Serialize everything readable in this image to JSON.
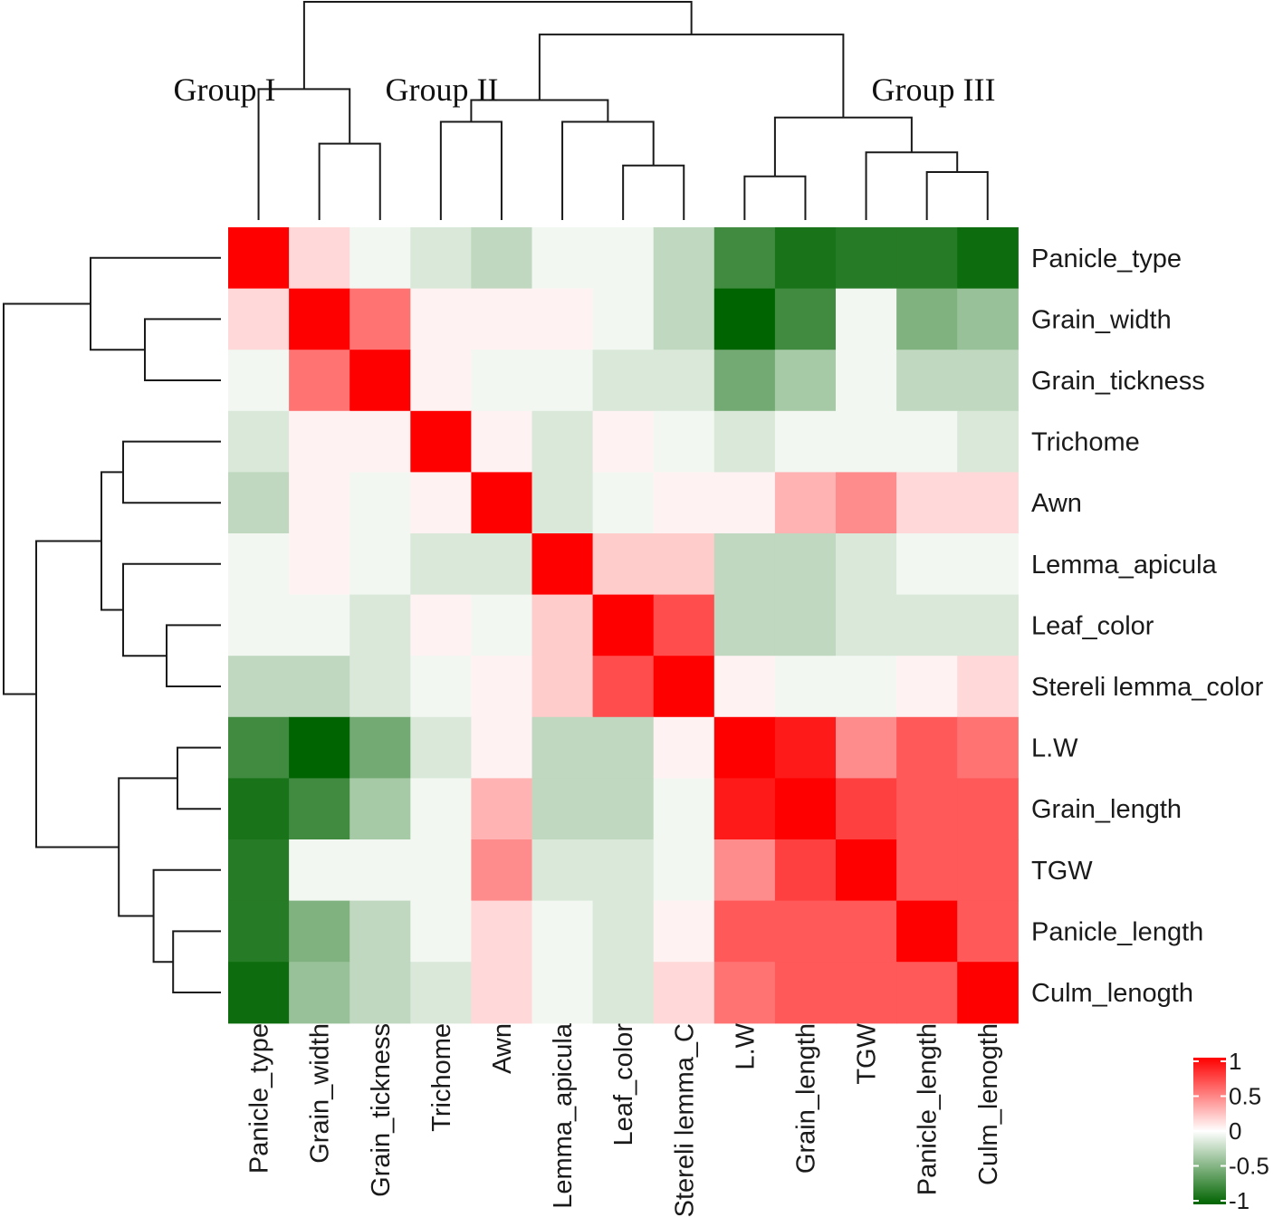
{
  "chart_data": {
    "type": "heatmap",
    "title": "",
    "groups": [
      "Group I",
      "Group II",
      "Group III"
    ],
    "variables": [
      "Panicle_type",
      "Grain_width",
      "Grain_tickness",
      "Trichome",
      "Awn",
      "Lemma_apicula",
      "Leaf_color",
      "Stereli lemma_color",
      "L.W",
      "Grain_length",
      "TGW",
      "Panicle_length",
      "Culm_lenogth"
    ],
    "column_labels": [
      "Panicle_type",
      "Grain_width",
      "Grain_tickness",
      "Trichome",
      "Awn",
      "Lemma_apicula",
      "Leaf_color",
      "Stereli lemma_C",
      "L.W",
      "Grain_length",
      "TGW",
      "Panicle_length",
      "Culm_lenogth"
    ],
    "row_labels": [
      "Panicle_type",
      "Grain_width",
      "Grain_tickness",
      "Trichome",
      "Awn",
      "Lemma_apicula",
      "Leaf_color",
      "Stereli lemma_color",
      "L.W",
      "Grain_length",
      "TGW",
      "Panicle_length",
      "Culm_lenogth"
    ],
    "matrix": [
      [
        1.0,
        0.15,
        -0.05,
        -0.15,
        -0.25,
        -0.05,
        -0.05,
        -0.25,
        -0.75,
        -0.9,
        -0.85,
        -0.85,
        -0.95
      ],
      [
        0.15,
        1.0,
        0.55,
        0.05,
        0.05,
        0.05,
        -0.05,
        -0.25,
        -1.0,
        -0.75,
        -0.05,
        -0.5,
        -0.4
      ],
      [
        -0.05,
        0.55,
        1.0,
        0.05,
        -0.05,
        -0.05,
        -0.15,
        -0.15,
        -0.55,
        -0.35,
        -0.05,
        -0.25,
        -0.25
      ],
      [
        -0.15,
        0.05,
        0.05,
        1.0,
        0.05,
        -0.15,
        0.05,
        -0.05,
        -0.15,
        -0.05,
        -0.05,
        -0.05,
        -0.15
      ],
      [
        -0.25,
        0.05,
        -0.05,
        0.05,
        1.0,
        -0.15,
        -0.05,
        0.05,
        0.05,
        0.3,
        0.45,
        0.15,
        0.15
      ],
      [
        -0.05,
        0.05,
        -0.05,
        -0.15,
        -0.15,
        1.0,
        0.2,
        0.2,
        -0.25,
        -0.25,
        -0.15,
        -0.05,
        -0.05
      ],
      [
        -0.05,
        -0.05,
        -0.15,
        0.05,
        -0.05,
        0.2,
        1.0,
        0.7,
        -0.25,
        -0.25,
        -0.15,
        -0.15,
        -0.15
      ],
      [
        -0.25,
        -0.25,
        -0.15,
        -0.05,
        0.05,
        0.2,
        0.7,
        1.0,
        0.05,
        -0.05,
        -0.05,
        0.05,
        0.15
      ],
      [
        -0.75,
        -1.0,
        -0.55,
        -0.15,
        0.05,
        -0.25,
        -0.25,
        0.05,
        1.0,
        0.9,
        0.45,
        0.65,
        0.55
      ],
      [
        -0.9,
        -0.75,
        -0.35,
        -0.05,
        0.3,
        -0.25,
        -0.25,
        -0.05,
        0.9,
        1.0,
        0.75,
        0.65,
        0.65
      ],
      [
        -0.85,
        -0.05,
        -0.05,
        -0.05,
        0.45,
        -0.15,
        -0.15,
        -0.05,
        0.45,
        0.75,
        1.0,
        0.65,
        0.65
      ],
      [
        -0.85,
        -0.5,
        -0.25,
        -0.05,
        0.15,
        -0.05,
        -0.15,
        0.05,
        0.65,
        0.65,
        0.65,
        1.0,
        0.65
      ],
      [
        -0.95,
        -0.4,
        -0.25,
        -0.15,
        0.15,
        -0.05,
        -0.15,
        0.15,
        0.55,
        0.65,
        0.65,
        0.65,
        1.0
      ]
    ],
    "color_scale": {
      "min": -1,
      "max": 1,
      "low_color": "#006400",
      "mid_color": "#ffffff",
      "high_color": "#ff0000",
      "ticks": [
        "1",
        "0.5",
        "0",
        "-0.5",
        "-1"
      ]
    },
    "dendrogram": "both"
  }
}
